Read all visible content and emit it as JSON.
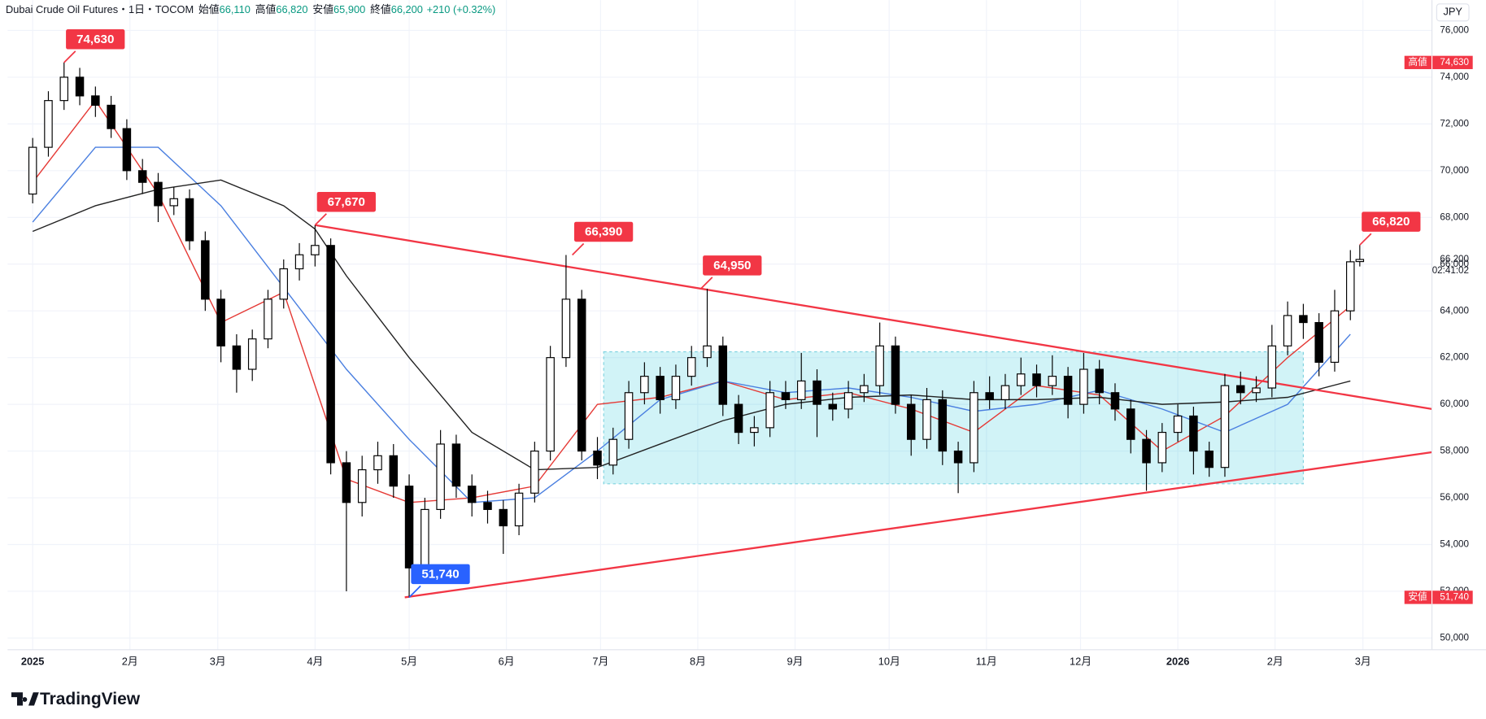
{
  "header": {
    "symbol": "Dubai Crude Oil Futures・1日・TOCOM",
    "stats": [
      {
        "label": "始値",
        "value": "66,110"
      },
      {
        "label": "高値",
        "value": "66,820"
      },
      {
        "label": "安値",
        "value": "65,900"
      },
      {
        "label": "終値",
        "value": "66,200"
      }
    ],
    "change": "+210 (+0.32%)"
  },
  "logo": "TradingView",
  "chart_data": {
    "type": "candlestick",
    "currency": "JPY",
    "grid": true,
    "up_color": "#ffffff",
    "down_color": "#000000",
    "wick_color": "#000000",
    "x": [
      0,
      5,
      10,
      15,
      20,
      25,
      30,
      35,
      40,
      45,
      50,
      55,
      60,
      65,
      70,
      75,
      80,
      85,
      90,
      95,
      100,
      105,
      110,
      115,
      120,
      125,
      130,
      135,
      140,
      145,
      150,
      155,
      160,
      165,
      170,
      175,
      180,
      185,
      190,
      195,
      200,
      205,
      210,
      215,
      220,
      225,
      230,
      235,
      240,
      245,
      250,
      255,
      260,
      265,
      270,
      275,
      280,
      285,
      290,
      295,
      300,
      305,
      310,
      315,
      320,
      325,
      330,
      335,
      340,
      345,
      350,
      355,
      360,
      365,
      370,
      375,
      380,
      385,
      390,
      395,
      400,
      405,
      410,
      415,
      420,
      423
    ],
    "open": [
      69000,
      71000,
      73000,
      74000,
      73200,
      72800,
      71800,
      70000,
      69500,
      68500,
      68800,
      67000,
      64500,
      62500,
      61500,
      62800,
      64500,
      65800,
      66400,
      66800,
      57500,
      55800,
      57200,
      57800,
      56500,
      53000,
      55500,
      58300,
      56500,
      55800,
      55500,
      54800,
      56200,
      58000,
      62000,
      64500,
      58000,
      57400,
      58500,
      60500,
      61200,
      60200,
      61200,
      62000,
      62500,
      60000,
      58800,
      59000,
      60500,
      60200,
      61000,
      60000,
      59800,
      60500,
      60800,
      62500,
      60000,
      58500,
      60200,
      58000,
      57500,
      60500,
      60200,
      60800,
      61300,
      60800,
      61200,
      60000,
      61500,
      60500,
      59800,
      58500,
      57500,
      58800,
      59500,
      58000,
      57300,
      60800,
      60500,
      60700,
      62500,
      63800,
      63500,
      61800,
      64000,
      66110
    ],
    "high": [
      71400,
      73400,
      74630,
      74400,
      73600,
      73200,
      72200,
      70500,
      69900,
      69300,
      69200,
      67400,
      64900,
      63000,
      63200,
      64900,
      66200,
      66900,
      67670,
      67100,
      58000,
      57800,
      58400,
      58300,
      57000,
      56000,
      58900,
      58700,
      57000,
      56300,
      55900,
      56600,
      58400,
      62500,
      66390,
      64900,
      58600,
      59000,
      61000,
      61800,
      61600,
      61700,
      62500,
      64950,
      62900,
      60400,
      59500,
      61000,
      61000,
      62200,
      61500,
      60500,
      61000,
      61300,
      63500,
      62900,
      60400,
      60700,
      60600,
      58400,
      61000,
      61200,
      61300,
      62000,
      61700,
      62100,
      61600,
      62200,
      61900,
      60900,
      60200,
      58900,
      59200,
      60000,
      59900,
      58400,
      61300,
      61400,
      61200,
      63400,
      64400,
      64300,
      63900,
      64900,
      66600,
      66820
    ],
    "low": [
      68600,
      70600,
      72600,
      72800,
      72300,
      71400,
      69600,
      69000,
      67800,
      68100,
      66600,
      64000,
      61800,
      60500,
      61000,
      62400,
      64100,
      65300,
      65900,
      57000,
      52000,
      55200,
      56600,
      56000,
      51740,
      52600,
      55100,
      56000,
      55200,
      54900,
      53600,
      54400,
      55800,
      57600,
      61600,
      57600,
      56800,
      57000,
      58100,
      60000,
      59600,
      59800,
      60800,
      61600,
      59500,
      58300,
      58200,
      58600,
      59800,
      59800,
      58600,
      59300,
      59400,
      60100,
      60400,
      59600,
      57800,
      58100,
      57400,
      56200,
      57100,
      59800,
      59800,
      60400,
      60300,
      60400,
      59400,
      59600,
      60000,
      59300,
      57900,
      56300,
      57100,
      58400,
      57000,
      56900,
      56900,
      60000,
      60100,
      60300,
      62100,
      62800,
      61200,
      61400,
      63600,
      65900
    ],
    "close": [
      71000,
      73000,
      74000,
      73200,
      72800,
      71800,
      70000,
      69500,
      68500,
      68800,
      67000,
      64500,
      62500,
      61500,
      62800,
      64500,
      65800,
      66400,
      66800,
      57500,
      55800,
      57200,
      57800,
      56500,
      53000,
      55500,
      58300,
      56500,
      55800,
      55500,
      54800,
      56200,
      58000,
      62000,
      64500,
      58000,
      57400,
      58500,
      60500,
      61200,
      60200,
      61200,
      62000,
      62500,
      60000,
      58800,
      59000,
      60500,
      60200,
      61000,
      60000,
      59800,
      60500,
      60800,
      62500,
      60000,
      58500,
      60200,
      58000,
      57500,
      60500,
      60200,
      60800,
      61300,
      60800,
      61200,
      60000,
      61500,
      60500,
      59800,
      58500,
      57500,
      58800,
      59500,
      58000,
      57300,
      60800,
      60500,
      60700,
      62500,
      63800,
      63500,
      61800,
      64000,
      66100,
      66200
    ],
    "xlim": [
      -8,
      446
    ],
    "ylim": [
      49500,
      77300
    ],
    "xticks": [
      {
        "value": 0,
        "label": "2025"
      },
      {
        "value": 31,
        "label": "2月"
      },
      {
        "value": 59,
        "label": "3月"
      },
      {
        "value": 90,
        "label": "4月"
      },
      {
        "value": 120,
        "label": "5月"
      },
      {
        "value": 151,
        "label": "6月"
      },
      {
        "value": 181,
        "label": "7月"
      },
      {
        "value": 212,
        "label": "8月"
      },
      {
        "value": 243,
        "label": "9月"
      },
      {
        "value": 273,
        "label": "10月"
      },
      {
        "value": 304,
        "label": "11月"
      },
      {
        "value": 334,
        "label": "12月"
      },
      {
        "value": 365,
        "label": "2026"
      },
      {
        "value": 396,
        "label": "2月"
      },
      {
        "value": 424,
        "label": "3月"
      }
    ],
    "yticks": [
      {
        "value": 50000,
        "label": "50,000"
      },
      {
        "value": 52000,
        "label": "52,000"
      },
      {
        "value": 54000,
        "label": "54,000"
      },
      {
        "value": 56000,
        "label": "56,000"
      },
      {
        "value": 58000,
        "label": "58,000"
      },
      {
        "value": 60000,
        "label": "60,000"
      },
      {
        "value": 62000,
        "label": "62,000"
      },
      {
        "value": 64000,
        "label": "64,000"
      },
      {
        "value": 66000,
        "label": "66,000"
      },
      {
        "value": 68000,
        "label": "68,000"
      },
      {
        "value": 70000,
        "label": "70,000"
      },
      {
        "value": 72000,
        "label": "72,000"
      },
      {
        "value": 74000,
        "label": "74,000"
      },
      {
        "value": 76000,
        "label": "76,000"
      }
    ],
    "moving_averages": [
      {
        "color": "#e53935",
        "x": [
          0,
          20,
          40,
          60,
          80,
          100,
          120,
          140,
          160,
          180,
          200,
          220,
          240,
          260,
          280,
          300,
          320,
          340,
          360,
          380,
          400,
          420
        ],
        "values": [
          69500,
          73000,
          69000,
          63500,
          64800,
          56800,
          55800,
          56000,
          56500,
          60000,
          60300,
          61000,
          60200,
          60500,
          59800,
          58800,
          60800,
          60400,
          58000,
          59500,
          62000,
          64200
        ]
      },
      {
        "color": "#4a7fe0",
        "x": [
          0,
          20,
          40,
          60,
          80,
          100,
          120,
          140,
          160,
          180,
          200,
          220,
          240,
          260,
          280,
          300,
          320,
          340,
          360,
          380,
          400,
          420
        ],
        "values": [
          67800,
          71000,
          71000,
          68500,
          65000,
          61500,
          58500,
          55800,
          56000,
          58000,
          60200,
          61000,
          60500,
          60700,
          60300,
          59700,
          60000,
          60600,
          59800,
          58800,
          60000,
          63000
        ]
      },
      {
        "color": "#222222",
        "x": [
          0,
          20,
          40,
          60,
          80,
          90,
          100,
          120,
          140,
          160,
          180,
          200,
          220,
          240,
          260,
          280,
          300,
          320,
          340,
          360,
          380,
          400,
          420
        ],
        "values": [
          67400,
          68500,
          69200,
          69600,
          68500,
          67500,
          65500,
          62000,
          58800,
          57200,
          57300,
          58300,
          59300,
          60000,
          60300,
          60400,
          60200,
          60200,
          60300,
          60000,
          60100,
          60300,
          61000
        ]
      }
    ],
    "trendlines": [
      {
        "color": "#f23645",
        "x": [
          90,
          446
        ],
        "values": [
          67670,
          59800
        ]
      },
      {
        "color": "#f23645",
        "x": [
          118.6,
          446
        ],
        "values": [
          51740,
          57950
        ]
      }
    ],
    "box": {
      "x": [
        182,
        405
      ],
      "y": [
        56600,
        62250
      ]
    },
    "annotations": [
      {
        "x": 10,
        "value": 74630,
        "label": "74,630",
        "color": "#f23645"
      },
      {
        "x": 90,
        "value": 67670,
        "label": "67,670",
        "color": "#f23645"
      },
      {
        "x": 172,
        "value": 66390,
        "label": "66,390",
        "color": "#f23645"
      },
      {
        "x": 213,
        "value": 64950,
        "label": "64,950",
        "color": "#f23645"
      },
      {
        "x": 120,
        "value": 51740,
        "label": "51,740",
        "color": "#2962ff"
      },
      {
        "x": 423,
        "value": 66820,
        "label": "66,820",
        "color": "#f23645"
      }
    ],
    "last_price": {
      "value": 66200,
      "label": "66,200",
      "countdown": "02:41:02"
    },
    "high_marker": {
      "text": "高値",
      "value": 74630,
      "label": "74,630"
    },
    "low_marker": {
      "text": "安値",
      "value": 51740,
      "label": "51,740"
    }
  }
}
